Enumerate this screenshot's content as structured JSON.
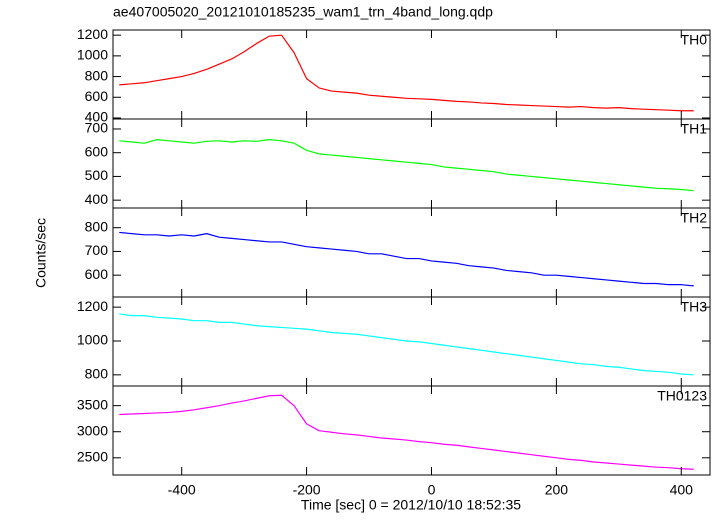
{
  "chart_data": {
    "type": "line",
    "title": "ae407005020_20121010185235_wam1_trn_4band_long.qdp",
    "xlabel": "Time [sec] 0 = 2012/10/10 18:52:35",
    "ylabel": "Counts/sec",
    "xlim": [
      -510,
      446
    ],
    "xticks": [
      -400,
      -200,
      0,
      200,
      400
    ],
    "x": [
      -500,
      -480,
      -460,
      -440,
      -420,
      -400,
      -380,
      -360,
      -340,
      -320,
      -300,
      -280,
      -260,
      -240,
      -220,
      -200,
      -180,
      -160,
      -140,
      -120,
      -100,
      -80,
      -60,
      -40,
      -20,
      0,
      20,
      40,
      60,
      80,
      100,
      120,
      140,
      160,
      180,
      200,
      220,
      240,
      260,
      280,
      300,
      320,
      340,
      360,
      380,
      400,
      420
    ],
    "series": [
      {
        "name": "TH0",
        "color": "#ff0000",
        "ylim": [
          390,
          1250
        ],
        "yticks": [
          400,
          600,
          800,
          1000,
          1200
        ],
        "values": [
          720,
          730,
          740,
          760,
          780,
          800,
          830,
          870,
          920,
          970,
          1040,
          1120,
          1190,
          1200,
          1030,
          780,
          690,
          660,
          650,
          640,
          620,
          610,
          600,
          590,
          585,
          580,
          570,
          560,
          555,
          545,
          540,
          530,
          525,
          520,
          515,
          510,
          505,
          510,
          500,
          495,
          500,
          490,
          485,
          480,
          475,
          470,
          470
        ]
      },
      {
        "name": "TH1",
        "color": "#00ff00",
        "ylim": [
          367,
          742
        ],
        "yticks": [
          400,
          500,
          600,
          700
        ],
        "values": [
          650,
          645,
          640,
          655,
          650,
          645,
          640,
          648,
          650,
          645,
          650,
          648,
          655,
          650,
          640,
          610,
          595,
          590,
          585,
          580,
          575,
          570,
          565,
          560,
          555,
          550,
          540,
          535,
          530,
          525,
          520,
          510,
          505,
          500,
          495,
          490,
          485,
          480,
          475,
          470,
          465,
          460,
          455,
          450,
          448,
          445,
          440
        ]
      },
      {
        "name": "TH2",
        "color": "#0000ff",
        "ylim": [
          508,
          883
        ],
        "yticks": [
          600,
          700,
          800
        ],
        "values": [
          780,
          775,
          770,
          770,
          765,
          770,
          765,
          775,
          760,
          755,
          750,
          745,
          740,
          740,
          730,
          720,
          715,
          710,
          705,
          700,
          690,
          690,
          680,
          670,
          670,
          660,
          655,
          650,
          640,
          635,
          630,
          620,
          615,
          610,
          600,
          600,
          595,
          590,
          585,
          580,
          575,
          570,
          565,
          565,
          560,
          560,
          555
        ]
      },
      {
        "name": "TH3",
        "color": "#00ffff",
        "ylim": [
          734,
          1260
        ],
        "yticks": [
          800,
          1000,
          1200
        ],
        "values": [
          1160,
          1150,
          1150,
          1140,
          1135,
          1130,
          1120,
          1120,
          1110,
          1110,
          1100,
          1090,
          1085,
          1080,
          1075,
          1070,
          1060,
          1050,
          1045,
          1040,
          1030,
          1020,
          1010,
          1000,
          995,
          985,
          975,
          965,
          955,
          945,
          935,
          925,
          915,
          905,
          895,
          885,
          875,
          865,
          860,
          850,
          845,
          835,
          825,
          820,
          815,
          805,
          800
        ]
      },
      {
        "name": "TH0123",
        "color": "#ff00ff",
        "ylim": [
          2170,
          3877
        ],
        "yticks": [
          2500,
          3000,
          3500
        ],
        "values": [
          3330,
          3340,
          3350,
          3360,
          3370,
          3390,
          3420,
          3460,
          3500,
          3550,
          3590,
          3640,
          3690,
          3700,
          3500,
          3150,
          3020,
          2990,
          2960,
          2940,
          2910,
          2880,
          2860,
          2840,
          2810,
          2790,
          2760,
          2740,
          2710,
          2680,
          2650,
          2620,
          2590,
          2560,
          2530,
          2500,
          2470,
          2450,
          2420,
          2400,
          2380,
          2360,
          2340,
          2320,
          2310,
          2290,
          2280
        ]
      }
    ]
  }
}
